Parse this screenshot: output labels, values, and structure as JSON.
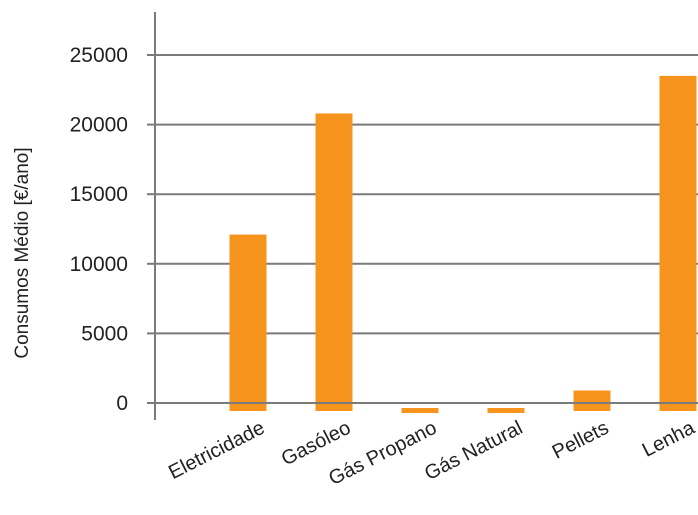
{
  "chart_data": {
    "type": "bar",
    "title": "",
    "xlabel": "",
    "ylabel": "Consumos Médio [€/ano]",
    "categories": [
      "Eletricidade",
      "Gasóleo",
      "Gás Propano",
      "Gás Natural",
      "Pellets",
      "Lenha"
    ],
    "values": [
      12100,
      20800,
      -300,
      -300,
      900,
      23500
    ],
    "ylim": [
      -200,
      26500
    ],
    "yticks": [
      0,
      5000,
      10000,
      15000,
      20000,
      25000
    ],
    "grid": true,
    "legend": "none",
    "bar_color": "#f7941d",
    "grid_color": "#7a7a7a",
    "text_color": "#222222"
  }
}
